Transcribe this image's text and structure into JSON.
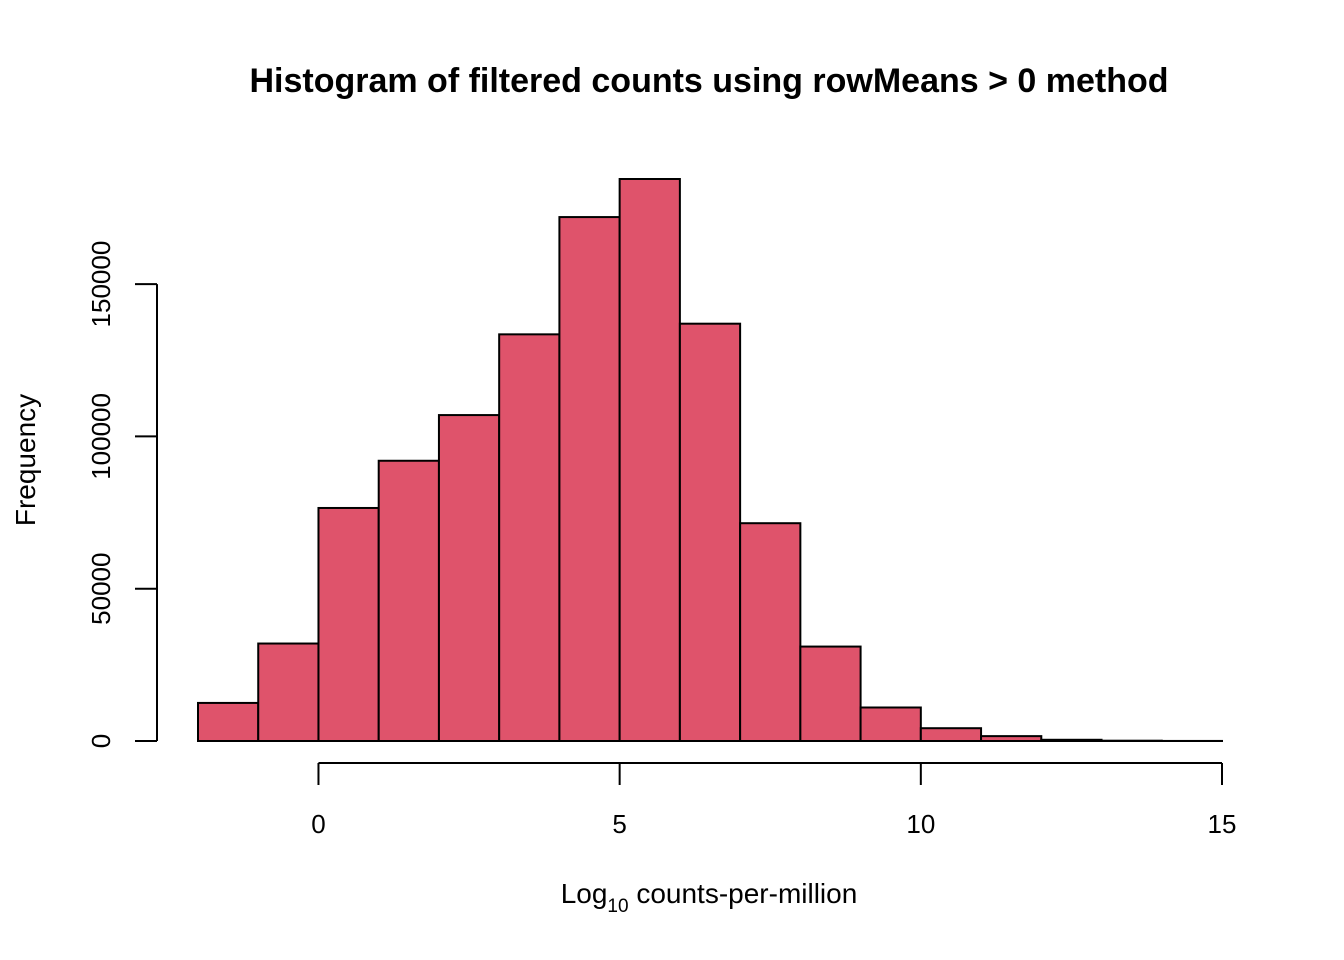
{
  "chart_data": {
    "type": "bar",
    "title": "Histogram of filtered counts using rowMeans > 0 method",
    "xlabel_main": "Log",
    "xlabel_sub": "10",
    "xlabel_rest": " counts-per-million",
    "ylabel": "Frequency",
    "bar_color": "#DF536B",
    "bin_width": 1,
    "bins": [
      {
        "start": -2,
        "end": -1,
        "count": 12500
      },
      {
        "start": -1,
        "end": 0,
        "count": 32000
      },
      {
        "start": 0,
        "end": 1,
        "count": 76500
      },
      {
        "start": 1,
        "end": 2,
        "count": 92000
      },
      {
        "start": 2,
        "end": 3,
        "count": 107000
      },
      {
        "start": 3,
        "end": 4,
        "count": 133500
      },
      {
        "start": 4,
        "end": 5,
        "count": 172000
      },
      {
        "start": 5,
        "end": 6,
        "count": 184500
      },
      {
        "start": 6,
        "end": 7,
        "count": 137000
      },
      {
        "start": 7,
        "end": 8,
        "count": 71500
      },
      {
        "start": 8,
        "end": 9,
        "count": 31000
      },
      {
        "start": 9,
        "end": 10,
        "count": 11000
      },
      {
        "start": 10,
        "end": 11,
        "count": 4200
      },
      {
        "start": 11,
        "end": 12,
        "count": 1600
      },
      {
        "start": 12,
        "end": 13,
        "count": 400
      },
      {
        "start": 13,
        "end": 14,
        "count": 100
      },
      {
        "start": 14,
        "end": 15,
        "count": 20
      }
    ],
    "x_ticks": [
      0,
      5,
      10,
      15
    ],
    "x_tick_labels": [
      "0",
      "5",
      "10",
      "15"
    ],
    "y_ticks": [
      0,
      50000,
      100000,
      150000
    ],
    "y_tick_labels": [
      "0",
      "50000",
      "100000",
      "150000"
    ],
    "xlim": [
      -2,
      15
    ],
    "ylim": [
      0,
      184500
    ],
    "grid": false
  }
}
